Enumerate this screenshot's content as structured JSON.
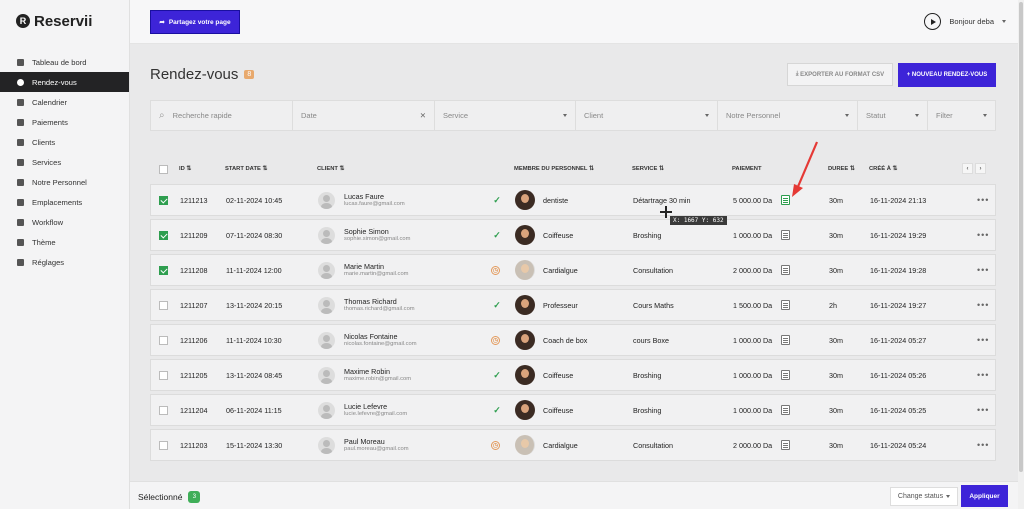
{
  "app": {
    "logo_letter": "R",
    "logo_text": "Reservii"
  },
  "sidebar": {
    "items": [
      {
        "label": "Tableau de bord",
        "icon": "cube-icon"
      },
      {
        "label": "Rendez-vous",
        "icon": "clock-icon",
        "active": true
      },
      {
        "label": "Calendrier",
        "icon": "calendar-icon"
      },
      {
        "label": "Paiements",
        "icon": "credit-card-icon"
      },
      {
        "label": "Clients",
        "icon": "users-icon"
      },
      {
        "label": "Services",
        "icon": "list-icon"
      },
      {
        "label": "Notre Personnel",
        "icon": "user-icon"
      },
      {
        "label": "Emplacements",
        "icon": "send-icon"
      },
      {
        "label": "Workflow",
        "icon": "workflow-icon"
      },
      {
        "label": "Thème",
        "icon": "brush-icon"
      },
      {
        "label": "Réglages",
        "icon": "gear-icon"
      }
    ]
  },
  "topbar": {
    "share_label": "Partagez votre page",
    "greeting": "Bonjour deba"
  },
  "page": {
    "title": "Rendez-vous",
    "count": "8",
    "export_label": "EXPORTER AU FORMAT CSV",
    "new_label": "+ NOUVEAU RENDEZ-VOUS"
  },
  "filters": {
    "search": "Recherche rapide",
    "date": "Date",
    "service": "Service",
    "client": "Client",
    "staff": "Notre Personnel",
    "status": "Statut",
    "filter": "Filter"
  },
  "columns": [
    "ID",
    "START DATE",
    "CLIENT",
    "MEMBRE DU PERSONNEL",
    "SERVICE",
    "PAIEMENT",
    "DUREE",
    "CRÉÉ À"
  ],
  "rows": [
    {
      "checked": true,
      "id": "1211213",
      "start": "02-11-2024 10:45",
      "name": "Lucas Faure",
      "email": "lucas.faure@gmail.com",
      "status": "ok",
      "staff": "dentiste",
      "staff_gender": "m",
      "service": "Détartrage 30 min",
      "payment": "5 000.00 Da",
      "paid": true,
      "duration": "30m",
      "created": "16-11-2024 21:13"
    },
    {
      "checked": true,
      "id": "1211209",
      "start": "07-11-2024 08:30",
      "name": "Sophie Simon",
      "email": "sophie.simon@gmail.com",
      "status": "ok",
      "staff": "Coiffeuse",
      "staff_gender": "m",
      "service": "Broshing",
      "payment": "1 000.00 Da",
      "paid": false,
      "duration": "30m",
      "created": "16-11-2024 19:29"
    },
    {
      "checked": true,
      "id": "1211208",
      "start": "11-11-2024 12:00",
      "name": "Marie Martin",
      "email": "marie.martin@gmail.com",
      "status": "wait",
      "staff": "Cardialgue",
      "staff_gender": "f",
      "service": "Consultation",
      "payment": "2 000.00 Da",
      "paid": false,
      "duration": "30m",
      "created": "16-11-2024 19:28"
    },
    {
      "checked": false,
      "id": "1211207",
      "start": "13-11-2024 20:15",
      "name": "Thomas Richard",
      "email": "thomas.richard@gmail.com",
      "status": "ok",
      "staff": "Professeur",
      "staff_gender": "m",
      "service": "Cours Maths",
      "payment": "1 500.00 Da",
      "paid": false,
      "duration": "2h",
      "created": "16-11-2024 19:27"
    },
    {
      "checked": false,
      "id": "1211206",
      "start": "11-11-2024 10:30",
      "name": "Nicolas Fontaine",
      "email": "nicolas.fontaine@gmail.com",
      "status": "wait",
      "staff": "Coach de box",
      "staff_gender": "m",
      "service": "cours Boxe",
      "payment": "1 000.00 Da",
      "paid": false,
      "duration": "30m",
      "created": "16-11-2024 05:27"
    },
    {
      "checked": false,
      "id": "1211205",
      "start": "13-11-2024 08:45",
      "name": "Maxime Robin",
      "email": "maxime.robin@gmail.com",
      "status": "ok",
      "staff": "Coiffeuse",
      "staff_gender": "m",
      "service": "Broshing",
      "payment": "1 000.00 Da",
      "paid": false,
      "duration": "30m",
      "created": "16-11-2024 05:26"
    },
    {
      "checked": false,
      "id": "1211204",
      "start": "06-11-2024 11:15",
      "name": "Lucie Lefevre",
      "email": "lucie.lefevre@gmail.com",
      "status": "ok",
      "staff": "Coiffeuse",
      "staff_gender": "m",
      "service": "Broshing",
      "payment": "1 000.00 Da",
      "paid": false,
      "duration": "30m",
      "created": "16-11-2024 05:25"
    },
    {
      "checked": false,
      "id": "1211203",
      "start": "15-11-2024 13:30",
      "name": "Paul Moreau",
      "email": "paul.moreau@gmail.com",
      "status": "wait",
      "staff": "Cardialgue",
      "staff_gender": "f",
      "service": "Consultation",
      "payment": "2 000.00 Da",
      "paid": false,
      "duration": "30m",
      "created": "16-11-2024 05:24"
    }
  ],
  "cursor_readout": "X: 1667 Y: 632",
  "bottom": {
    "selected_label": "Sélectionné",
    "selected_count": "3",
    "change_status": "Change status",
    "apply": "Appliquer"
  },
  "colors": {
    "primary": "#3d24d8",
    "success": "#2e9e4f",
    "warning": "#e39a5c",
    "sidebar_active": "#232325",
    "annotation": "#e53935"
  }
}
